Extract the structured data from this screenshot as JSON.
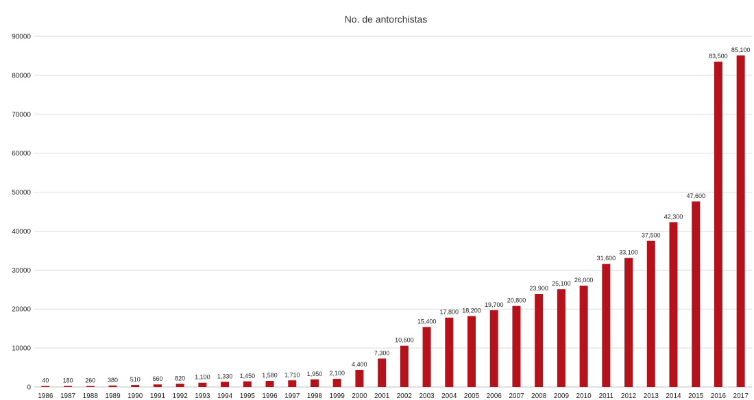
{
  "chart_data": {
    "type": "bar",
    "title": "No. de antorchistas",
    "xlabel": "",
    "ylabel": "",
    "categories": [
      "1986",
      "1987",
      "1988",
      "1989",
      "1990",
      "1991",
      "1992",
      "1993",
      "1994",
      "1995",
      "1996",
      "1997",
      "1998",
      "1999",
      "2000",
      "2001",
      "2002",
      "2003",
      "2004",
      "2005",
      "2006",
      "2007",
      "2008",
      "2009",
      "2010",
      "2011",
      "2012",
      "2013",
      "2014",
      "2015",
      "2016",
      "2017"
    ],
    "values": [
      40,
      180,
      260,
      380,
      510,
      660,
      820,
      1100,
      1330,
      1450,
      1580,
      1710,
      1950,
      2100,
      4400,
      7300,
      10600,
      15400,
      17800,
      18200,
      19700,
      20800,
      23900,
      25100,
      26000,
      31600,
      33100,
      37500,
      42300,
      47600,
      83500,
      85100
    ],
    "data_labels": [
      "40",
      "180",
      "260",
      "380",
      "510",
      "660",
      "820",
      "1,100",
      "1,330",
      "1,450",
      "1,580",
      "1,710",
      "1,950",
      "2,100",
      "4,400",
      "7,300",
      "10,600",
      "15,400",
      "17,800",
      "18,200",
      "19,700",
      "20,800",
      "23,900",
      "25,100",
      "26,000",
      "31,600",
      "33,100",
      "37,500",
      "42,300",
      "47,600",
      "83,500",
      "85,100"
    ],
    "ylim": [
      0,
      90000
    ],
    "yticks": [
      "0",
      "10000",
      "20000",
      "30000",
      "40000",
      "50000",
      "60000",
      "70000",
      "80000",
      "90000"
    ],
    "grid": true,
    "legend": "none",
    "bar_color": "#b5121b"
  }
}
